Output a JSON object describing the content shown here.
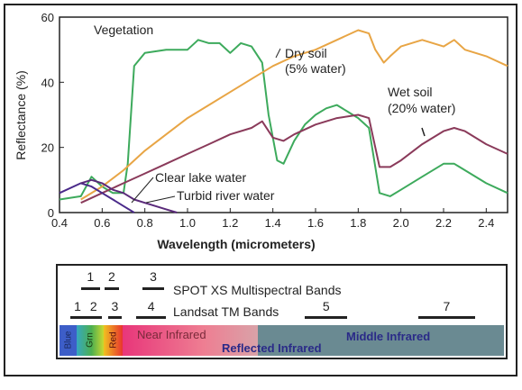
{
  "chart_data": {
    "type": "line",
    "xlabel": "Wavelength (micrometers)",
    "ylabel": "Reflectance (%)",
    "xlim": [
      0.4,
      2.5
    ],
    "ylim": [
      0,
      60
    ],
    "x_ticks": [
      "0.4",
      "0.6",
      "0.8",
      "1.0",
      "1.2",
      "1.4",
      "1.6",
      "1.8",
      "2.0",
      "2.2",
      "2.4"
    ],
    "y_ticks": [
      "0",
      "20",
      "40",
      "60"
    ],
    "grid": false,
    "series": [
      {
        "name": "Vegetation",
        "color": "#3daa5c",
        "points": [
          [
            0.4,
            4
          ],
          [
            0.5,
            5
          ],
          [
            0.55,
            11
          ],
          [
            0.6,
            8
          ],
          [
            0.65,
            6
          ],
          [
            0.7,
            6
          ],
          [
            0.72,
            15
          ],
          [
            0.75,
            45
          ],
          [
            0.8,
            49
          ],
          [
            0.9,
            50
          ],
          [
            1.0,
            50
          ],
          [
            1.05,
            53
          ],
          [
            1.1,
            52
          ],
          [
            1.15,
            52
          ],
          [
            1.2,
            49
          ],
          [
            1.25,
            52
          ],
          [
            1.3,
            51
          ],
          [
            1.35,
            46
          ],
          [
            1.38,
            30
          ],
          [
            1.42,
            16
          ],
          [
            1.45,
            15
          ],
          [
            1.5,
            22
          ],
          [
            1.55,
            27
          ],
          [
            1.6,
            30
          ],
          [
            1.65,
            32
          ],
          [
            1.7,
            33
          ],
          [
            1.75,
            31
          ],
          [
            1.8,
            29
          ],
          [
            1.85,
            26
          ],
          [
            1.9,
            6
          ],
          [
            1.95,
            5
          ],
          [
            2.0,
            7
          ],
          [
            2.1,
            11
          ],
          [
            2.2,
            15
          ],
          [
            2.25,
            15
          ],
          [
            2.3,
            13
          ],
          [
            2.4,
            9
          ],
          [
            2.5,
            6
          ]
        ]
      },
      {
        "name": "Dry soil (5% water)",
        "color": "#e8a545",
        "points": [
          [
            0.5,
            4
          ],
          [
            0.6,
            8
          ],
          [
            0.7,
            13
          ],
          [
            0.8,
            19
          ],
          [
            0.9,
            24
          ],
          [
            1.0,
            29
          ],
          [
            1.1,
            33
          ],
          [
            1.2,
            37
          ],
          [
            1.3,
            41
          ],
          [
            1.4,
            45
          ],
          [
            1.5,
            48
          ],
          [
            1.6,
            50
          ],
          [
            1.7,
            53
          ],
          [
            1.8,
            56
          ],
          [
            1.85,
            55
          ],
          [
            1.88,
            50
          ],
          [
            1.92,
            46
          ],
          [
            1.95,
            48
          ],
          [
            2.0,
            51
          ],
          [
            2.1,
            53
          ],
          [
            2.2,
            51
          ],
          [
            2.25,
            53
          ],
          [
            2.3,
            50
          ],
          [
            2.4,
            48
          ],
          [
            2.5,
            45
          ]
        ]
      },
      {
        "name": "Wet soil (20% water)",
        "color": "#8a3a5a",
        "points": [
          [
            0.5,
            3
          ],
          [
            0.6,
            6
          ],
          [
            0.7,
            9
          ],
          [
            0.8,
            12
          ],
          [
            0.9,
            15
          ],
          [
            1.0,
            18
          ],
          [
            1.1,
            21
          ],
          [
            1.2,
            24
          ],
          [
            1.3,
            26
          ],
          [
            1.35,
            28
          ],
          [
            1.4,
            23
          ],
          [
            1.45,
            22
          ],
          [
            1.5,
            24
          ],
          [
            1.6,
            27
          ],
          [
            1.7,
            29
          ],
          [
            1.8,
            30
          ],
          [
            1.85,
            29
          ],
          [
            1.9,
            14
          ],
          [
            1.95,
            14
          ],
          [
            2.0,
            16
          ],
          [
            2.1,
            21
          ],
          [
            2.2,
            25
          ],
          [
            2.25,
            26
          ],
          [
            2.3,
            25
          ],
          [
            2.4,
            21
          ],
          [
            2.5,
            18
          ]
        ]
      },
      {
        "name": "Clear lake water",
        "color": "#4a2a8a",
        "points": [
          [
            0.4,
            6
          ],
          [
            0.5,
            9
          ],
          [
            0.55,
            8
          ],
          [
            0.6,
            6
          ],
          [
            0.65,
            4
          ],
          [
            0.7,
            2
          ],
          [
            0.75,
            0
          ]
        ]
      },
      {
        "name": "Turbid river water",
        "color": "#5a2a7a",
        "points": [
          [
            0.5,
            9
          ],
          [
            0.55,
            10
          ],
          [
            0.6,
            9
          ],
          [
            0.65,
            7
          ],
          [
            0.7,
            6
          ],
          [
            0.75,
            4
          ],
          [
            0.8,
            3
          ],
          [
            0.9,
            1
          ],
          [
            0.95,
            0
          ]
        ]
      }
    ],
    "annotations": {
      "vegetation": "Vegetation",
      "dry_soil_1": "Dry soil",
      "dry_soil_2": "(5% water)",
      "wet_soil_1": "Wet soil",
      "wet_soil_2": "(20% water)",
      "clear_lake": "Clear lake water",
      "turbid_river": "Turbid river water"
    }
  },
  "bands": {
    "spot": {
      "label": "SPOT XS Multispectral Bands",
      "items": [
        {
          "num": "1",
          "start": 0.5,
          "end": 0.59
        },
        {
          "num": "2",
          "start": 0.61,
          "end": 0.68
        },
        {
          "num": "3",
          "start": 0.79,
          "end": 0.89
        }
      ]
    },
    "landsat": {
      "label": "Landsat TM Bands",
      "items": [
        {
          "num": "1",
          "start": 0.45,
          "end": 0.52
        },
        {
          "num": "2",
          "start": 0.52,
          "end": 0.6
        },
        {
          "num": "3",
          "start": 0.63,
          "end": 0.69
        },
        {
          "num": "4",
          "start": 0.76,
          "end": 0.9
        },
        {
          "num": "5",
          "start": 1.55,
          "end": 1.75
        },
        {
          "num": "7",
          "start": 2.08,
          "end": 2.35
        }
      ]
    }
  },
  "spectrum": {
    "blue": "Blue",
    "green": "Grn",
    "red": "Red",
    "near_infrared": "Near Infrared",
    "reflected_infrared": "Reflected Infrared",
    "middle_infrared": "Middle Infrared"
  }
}
